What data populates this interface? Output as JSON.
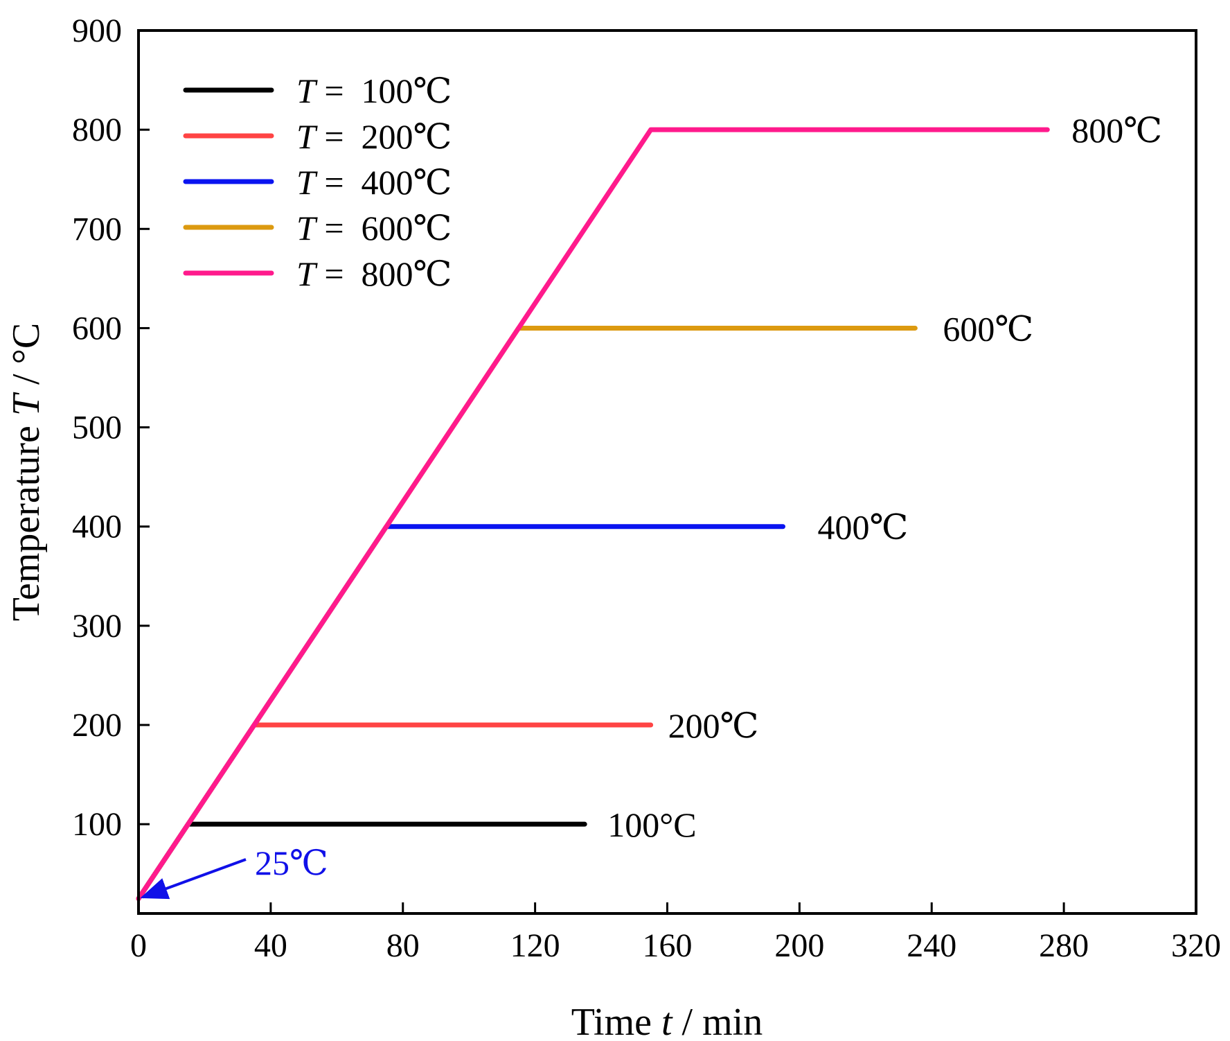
{
  "chart_data": {
    "type": "line",
    "xlabel": {
      "prefix": "Time ",
      "var": "t",
      "suffix": " / min"
    },
    "ylabel": {
      "prefix": "Temperature ",
      "var": "T",
      "suffix": " / °C"
    },
    "xlim": [
      0,
      320
    ],
    "ylim": [
      10,
      900
    ],
    "xticks": [
      0,
      40,
      80,
      120,
      160,
      200,
      240,
      280,
      320
    ],
    "yticks": [
      100,
      200,
      300,
      400,
      500,
      600,
      700,
      800,
      900
    ],
    "grid": false,
    "legend_position": "top-left",
    "series": [
      {
        "name": "T = 100℃",
        "legend_var": "T",
        "legend_text": " =  100℃",
        "color": "#000000",
        "x": [
          0,
          15,
          135
        ],
        "y": [
          25,
          100,
          100
        ],
        "end_label": "100°C"
      },
      {
        "name": "T = 200℃",
        "legend_var": "T",
        "legend_text": " =  200℃",
        "color": "#ff4444",
        "x": [
          0,
          35,
          155
        ],
        "y": [
          25,
          200,
          200
        ],
        "end_label": "200℃"
      },
      {
        "name": "T = 400℃",
        "legend_var": "T",
        "legend_text": " =  400℃",
        "color": "#0a14f0",
        "x": [
          0,
          75,
          195
        ],
        "y": [
          25,
          400,
          400
        ],
        "end_label": "400℃"
      },
      {
        "name": "T = 600℃",
        "legend_var": "T",
        "legend_text": " =  600℃",
        "color": "#dc9a10",
        "x": [
          0,
          115,
          235
        ],
        "y": [
          25,
          600,
          600
        ],
        "end_label": "600℃"
      },
      {
        "name": "T = 800℃",
        "legend_var": "T",
        "legend_text": " =  800℃",
        "color": "#ff1a8c",
        "x": [
          0,
          155,
          275
        ],
        "y": [
          25,
          800,
          800
        ],
        "end_label": "800℃"
      }
    ],
    "annotation": {
      "text": "25℃",
      "color": "#1010e8",
      "points_to": {
        "x": 0,
        "y": 25
      }
    }
  }
}
